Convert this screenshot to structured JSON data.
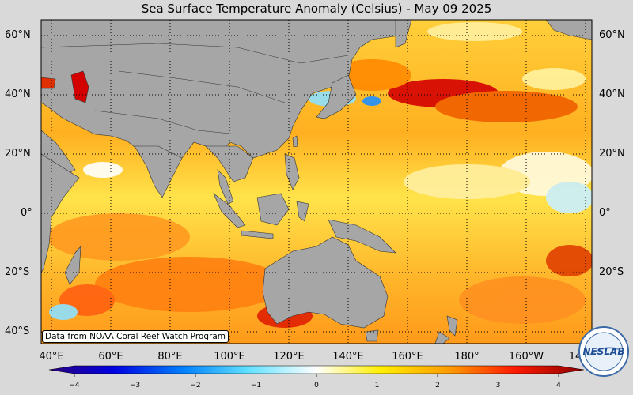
{
  "title": "Sea Surface Temperature Anomaly (Celsius) - May 09 2025",
  "lat_labels": [
    "60°N",
    "40°N",
    "20°N",
    "0°",
    "20°S",
    "40°S"
  ],
  "lon_labels": [
    "40°E",
    "60°E",
    "80°E",
    "100°E",
    "120°E",
    "140°E",
    "160°E",
    "180°",
    "160°W",
    "14"
  ],
  "credit": "Data from NOAA Coral Reef Watch Program",
  "colorbar": {
    "ticks": [
      "−4",
      "−3",
      "−2",
      "−1",
      "0",
      "1",
      "2",
      "3",
      "4"
    ],
    "min": -4,
    "max": 4
  },
  "logo_text": "NESLAB",
  "colors": {
    "land": "#a6a6a6",
    "ocean_warm": "#ffd21a",
    "ocean_hot": "#e60000",
    "ocean_cool": "#7fdcff",
    "background": "#d9d9d9"
  }
}
